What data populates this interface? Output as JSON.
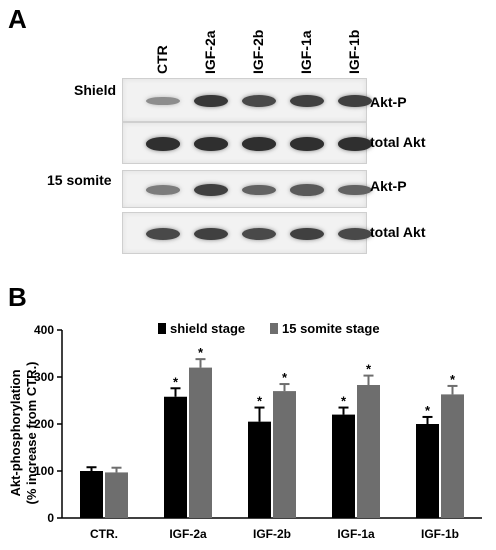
{
  "panel_a": {
    "letter": "A",
    "lanes": [
      "CTR",
      "IGF-2a",
      "IGF-2b",
      "IGF-1a",
      "IGF-1b"
    ],
    "stage_labels": [
      "Shield",
      "15 somite"
    ],
    "blot_labels": [
      "Akt-P",
      "total Akt",
      "Akt-P",
      "total Akt"
    ],
    "blots": [
      {
        "name": "shield-akt-p",
        "band_intensity": [
          0.35,
          0.85,
          0.75,
          0.8,
          0.8
        ]
      },
      {
        "name": "shield-total-akt",
        "band_intensity": [
          0.9,
          0.9,
          0.9,
          0.9,
          0.9
        ]
      },
      {
        "name": "somite-akt-p",
        "band_intensity": [
          0.45,
          0.8,
          0.6,
          0.65,
          0.6
        ]
      },
      {
        "name": "somite-total-akt",
        "band_intensity": [
          0.75,
          0.8,
          0.75,
          0.8,
          0.75
        ]
      }
    ]
  },
  "panel_b": {
    "letter": "B"
  },
  "chart_data": {
    "type": "bar",
    "categories": [
      "CTR.",
      "IGF-2a",
      "IGF-2b",
      "IGF-1a",
      "IGF-1b"
    ],
    "series": [
      {
        "name": "shield stage",
        "color": "#000000",
        "values": [
          100,
          258,
          205,
          220,
          200
        ],
        "errors": [
          8,
          18,
          30,
          15,
          15
        ]
      },
      {
        "name": "15 somite stage",
        "color": "#6e6e6e",
        "values": [
          97,
          320,
          270,
          283,
          263
        ],
        "errors": [
          10,
          18,
          15,
          20,
          18
        ]
      }
    ],
    "significance": [
      [
        "",
        "*",
        "*",
        "*",
        "*"
      ],
      [
        "",
        "*",
        "*",
        "*",
        "*"
      ]
    ],
    "ylabel_line1": "Akt-phosphorylation",
    "ylabel_line2": "(% increase from CTR.)",
    "ylim": [
      0,
      400
    ],
    "yticks": [
      0,
      100,
      200,
      300,
      400
    ],
    "legend_position": "top-center"
  }
}
